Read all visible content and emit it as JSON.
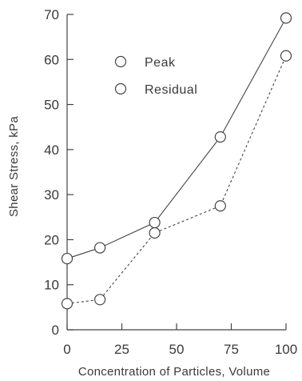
{
  "chart_data": {
    "type": "line",
    "title": "",
    "xlabel": "Concentration of Particles, Volume",
    "ylabel": "Shear Stress, kPa",
    "xlim": [
      0,
      100
    ],
    "ylim": [
      0,
      70
    ],
    "x_ticks": [
      "0",
      "25",
      "50",
      "75",
      "100"
    ],
    "y_ticks": [
      "0",
      "10",
      "20",
      "30",
      "40",
      "50",
      "60",
      "70"
    ],
    "grid": false,
    "legend_position": "upper-left",
    "x": [
      0,
      15,
      40,
      70,
      100
    ],
    "series": [
      {
        "name": "Peak",
        "values": [
          15.8,
          18.2,
          23.8,
          42.8,
          69.2
        ],
        "line_style": "solid",
        "marker": "open-circle",
        "color": "#444444"
      },
      {
        "name": "Residual",
        "values": [
          5.8,
          6.7,
          21.5,
          27.5,
          60.8
        ],
        "line_style": "dashed",
        "marker": "open-circle",
        "color": "#444444"
      }
    ]
  }
}
